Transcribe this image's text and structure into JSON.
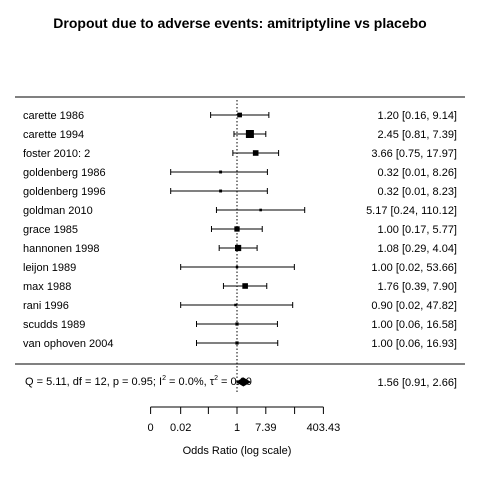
{
  "chart_data": {
    "type": "forest",
    "title": "Dropout due to adverse events: amitriptyline vs placebo",
    "xlabel": "Odds Ratio (log scale)",
    "x_scale": "log",
    "xticks": [
      {
        "value": 0.00248,
        "label": "0"
      },
      {
        "value": 0.02,
        "label": "0.02"
      },
      {
        "value": 0.137,
        "label": ""
      },
      {
        "value": 1,
        "label": "1"
      },
      {
        "value": 7.39,
        "label": "7.39"
      },
      {
        "value": 54.6,
        "label": ""
      },
      {
        "value": 403.43,
        "label": "403.43"
      }
    ],
    "reference_line": 1,
    "studies": [
      {
        "label": "carette 1986",
        "or": 1.2,
        "lo": 0.16,
        "hi": 9.14,
        "text": "1.20 [0.16,  9.14]",
        "weight": 0.45
      },
      {
        "label": "carette 1994",
        "or": 2.45,
        "lo": 0.81,
        "hi": 7.39,
        "text": "2.45 [0.81,  7.39]",
        "weight": 1.0
      },
      {
        "label": "foster 2010: 2",
        "or": 3.66,
        "lo": 0.75,
        "hi": 17.97,
        "text": "3.66 [0.75, 17.97]",
        "weight": 0.6
      },
      {
        "label": "goldenberg 1986",
        "or": 0.32,
        "lo": 0.01,
        "hi": 8.26,
        "text": "0.32 [0.01,  8.26]",
        "weight": 0.15
      },
      {
        "label": "goldenberg 1996",
        "or": 0.32,
        "lo": 0.01,
        "hi": 8.23,
        "text": "0.32 [0.01,  8.23]",
        "weight": 0.15
      },
      {
        "label": "goldman 2010",
        "or": 5.17,
        "lo": 0.24,
        "hi": 110.12,
        "text": "5.17 [0.24, 110.12]",
        "weight": 0.1
      },
      {
        "label": "grace 1985",
        "or": 1.0,
        "lo": 0.17,
        "hi": 5.77,
        "text": "1.00 [0.17,  5.77]",
        "weight": 0.55
      },
      {
        "label": "hannonen 1998",
        "or": 1.08,
        "lo": 0.29,
        "hi": 4.04,
        "text": "1.08 [0.29,  4.04]",
        "weight": 0.7
      },
      {
        "label": "leijon 1989",
        "or": 1.0,
        "lo": 0.02,
        "hi": 53.66,
        "text": "1.00 [0.02, 53.66]",
        "weight": 0.08
      },
      {
        "label": "max 1988",
        "or": 1.76,
        "lo": 0.39,
        "hi": 7.9,
        "text": "1.76 [0.39,  7.90]",
        "weight": 0.6
      },
      {
        "label": "rani 1996",
        "or": 0.9,
        "lo": 0.02,
        "hi": 47.82,
        "text": "0.90 [0.02, 47.82]",
        "weight": 0.08
      },
      {
        "label": "scudds 1989",
        "or": 1.0,
        "lo": 0.06,
        "hi": 16.58,
        "text": "1.00 [0.06, 16.58]",
        "weight": 0.2
      },
      {
        "label": "van ophoven 2004",
        "or": 1.0,
        "lo": 0.06,
        "hi": 16.93,
        "text": "1.00 [0.06, 16.93]",
        "weight": 0.2
      }
    ],
    "summary": {
      "or": 1.56,
      "lo": 0.91,
      "hi": 2.66,
      "text": "1.56 [0.91,  2.66]",
      "stats_prefix": "Q = 5.11, df = 12, p = 0.95; I",
      "stats_i2": " = 0.0%, τ",
      "stats_tau2": " = 0.00",
      "superscript": "2"
    }
  }
}
